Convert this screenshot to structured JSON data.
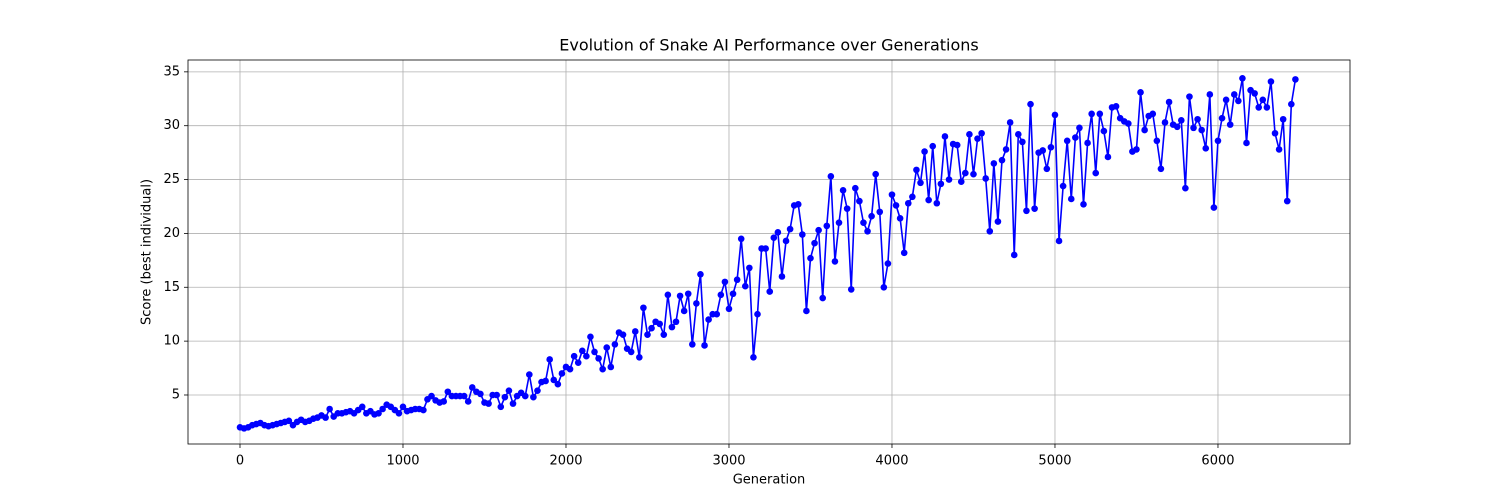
{
  "chart_data": {
    "type": "line",
    "title": "Evolution of Snake AI Performance over Generations",
    "x_label": "Generation",
    "y_label": "Score (best individual)",
    "x": [
      0,
      25,
      50,
      75,
      100,
      125,
      150,
      175,
      200,
      225,
      250,
      275,
      300,
      325,
      350,
      375,
      400,
      425,
      450,
      475,
      500,
      525,
      550,
      575,
      600,
      625,
      650,
      675,
      700,
      725,
      750,
      775,
      800,
      825,
      850,
      875,
      900,
      925,
      950,
      975,
      1000,
      1025,
      1050,
      1075,
      1100,
      1125,
      1150,
      1175,
      1200,
      1225,
      1250,
      1275,
      1300,
      1325,
      1350,
      1375,
      1400,
      1425,
      1450,
      1475,
      1500,
      1525,
      1550,
      1575,
      1600,
      1625,
      1650,
      1675,
      1700,
      1725,
      1750,
      1775,
      1800,
      1825,
      1850,
      1875,
      1900,
      1925,
      1950,
      1975,
      2000,
      2025,
      2050,
      2075,
      2100,
      2125,
      2150,
      2175,
      2200,
      2225,
      2250,
      2275,
      2300,
      2325,
      2350,
      2375,
      2400,
      2425,
      2450,
      2475,
      2500,
      2525,
      2550,
      2575,
      2600,
      2625,
      2650,
      2675,
      2700,
      2725,
      2750,
      2775,
      2800,
      2825,
      2850,
      2875,
      2900,
      2925,
      2950,
      2975,
      3000,
      3025,
      3050,
      3075,
      3100,
      3125,
      3150,
      3175,
      3200,
      3225,
      3250,
      3275,
      3300,
      3325,
      3350,
      3375,
      3400,
      3425,
      3450,
      3475,
      3500,
      3525,
      3550,
      3575,
      3600,
      3625,
      3650,
      3675,
      3700,
      3725,
      3750,
      3775,
      3800,
      3825,
      3850,
      3875,
      3900,
      3925,
      3950,
      3975,
      4000,
      4025,
      4050,
      4075,
      4100,
      4125,
      4150,
      4175,
      4200,
      4225,
      4250,
      4275,
      4300,
      4325,
      4350,
      4375,
      4400,
      4425,
      4450,
      4475,
      4500,
      4525,
      4550,
      4575,
      4600,
      4625,
      4650,
      4675,
      4700,
      4725,
      4750,
      4775,
      4800,
      4825,
      4850,
      4875,
      4900,
      4925,
      4950,
      4975,
      5000,
      5025,
      5050,
      5075,
      5100,
      5125,
      5150,
      5175,
      5200,
      5225,
      5250,
      5275,
      5300,
      5325,
      5350,
      5375,
      5400,
      5425,
      5450,
      5475,
      5500,
      5525,
      5550,
      5575,
      5600,
      5625,
      5650,
      5675,
      5700,
      5725,
      5750,
      5775,
      5800,
      5825,
      5850,
      5875,
      5900,
      5925,
      5950,
      5975,
      6000,
      6025,
      6050,
      6075,
      6100,
      6125,
      6150,
      6175,
      6200,
      6225,
      6250,
      6275,
      6300,
      6325,
      6350,
      6375,
      6400,
      6425,
      6450,
      6475
    ],
    "values": [
      2.0,
      1.9,
      2.0,
      2.2,
      2.3,
      2.4,
      2.2,
      2.1,
      2.2,
      2.3,
      2.4,
      2.5,
      2.6,
      2.2,
      2.5,
      2.7,
      2.5,
      2.6,
      2.8,
      2.9,
      3.1,
      2.9,
      3.7,
      3.0,
      3.3,
      3.3,
      3.4,
      3.5,
      3.3,
      3.6,
      3.9,
      3.3,
      3.5,
      3.2,
      3.3,
      3.7,
      4.1,
      3.9,
      3.6,
      3.3,
      3.9,
      3.5,
      3.6,
      3.7,
      3.7,
      3.6,
      4.6,
      4.9,
      4.5,
      4.3,
      4.4,
      5.3,
      4.9,
      4.9,
      4.9,
      4.9,
      4.4,
      5.7,
      5.3,
      5.1,
      4.3,
      4.2,
      5.0,
      5.0,
      3.9,
      4.8,
      5.4,
      4.2,
      4.9,
      5.2,
      4.9,
      6.9,
      4.8,
      5.4,
      6.2,
      6.3,
      8.3,
      6.4,
      6.0,
      7.0,
      7.6,
      7.4,
      8.6,
      8.0,
      9.1,
      8.6,
      10.4,
      9.0,
      8.4,
      7.4,
      9.4,
      7.6,
      9.7,
      10.8,
      10.6,
      9.3,
      9.0,
      10.9,
      8.5,
      13.1,
      10.6,
      11.2,
      11.8,
      11.6,
      10.6,
      14.3,
      11.3,
      11.8,
      14.2,
      12.8,
      14.4,
      9.7,
      13.5,
      16.2,
      9.6,
      12.0,
      12.5,
      12.5,
      14.3,
      15.5,
      13.0,
      14.4,
      15.7,
      19.5,
      15.1,
      16.8,
      8.5,
      12.5,
      18.6,
      18.6,
      14.6,
      19.6,
      20.1,
      16.0,
      19.3,
      20.4,
      22.6,
      22.7,
      19.9,
      12.8,
      17.7,
      19.1,
      20.3,
      14.0,
      20.7,
      25.3,
      17.4,
      21.0,
      24.0,
      22.3,
      14.8,
      24.2,
      23.0,
      21.0,
      20.2,
      21.6,
      25.5,
      22.0,
      15.0,
      17.2,
      23.6,
      22.6,
      21.4,
      18.2,
      22.8,
      23.4,
      25.9,
      24.7,
      27.6,
      23.1,
      28.1,
      22.8,
      24.6,
      29.0,
      25.0,
      28.3,
      28.2,
      24.8,
      25.6,
      29.2,
      25.5,
      28.8,
      29.3,
      25.1,
      20.2,
      26.5,
      21.1,
      26.8,
      27.8,
      30.3,
      18.0,
      29.2,
      28.5,
      22.1,
      32.0,
      22.3,
      27.5,
      27.7,
      26.0,
      28.0,
      31.0,
      19.3,
      24.4,
      28.6,
      23.2,
      28.9,
      29.8,
      22.7,
      28.4,
      31.1,
      25.6,
      31.1,
      29.5,
      27.1,
      31.7,
      31.8,
      30.7,
      30.4,
      30.2,
      27.6,
      27.8,
      33.1,
      29.6,
      30.9,
      31.1,
      28.6,
      26.0,
      30.3,
      32.2,
      30.1,
      29.9,
      30.5,
      24.2,
      32.7,
      29.8,
      30.6,
      29.6,
      27.9,
      32.9,
      22.4,
      28.6,
      30.7,
      32.4,
      30.1,
      32.9,
      32.3,
      34.4,
      28.4,
      33.3,
      33.0,
      31.7,
      32.4,
      31.7,
      34.1,
      29.3,
      27.8,
      30.6,
      23.0,
      32.0,
      34.3
    ],
    "color": "#0000ff",
    "xlim": [
      -319,
      6810
    ],
    "xticks": [
      0,
      1000,
      2000,
      3000,
      4000,
      5000,
      6000
    ],
    "ylim": [
      0.45,
      36.1
    ],
    "yticks": [
      5,
      10,
      15,
      20,
      25,
      30,
      35
    ],
    "grid": true
  }
}
